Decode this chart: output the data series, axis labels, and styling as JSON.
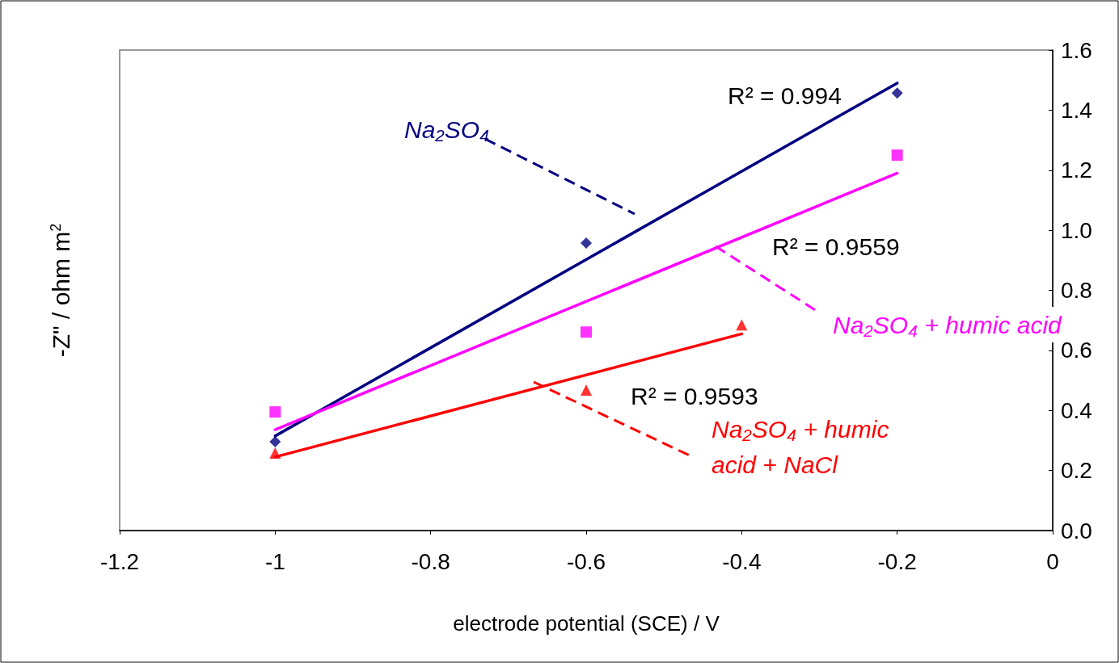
{
  "chart_data": {
    "type": "scatter",
    "xlabel": "electrode potential (SCE) / V",
    "ylabel": "-Z\" / ohm m$^{2}$",
    "xlim": [
      -1.2,
      0
    ],
    "xticks": [
      -1.2,
      -1,
      -0.8,
      -0.6,
      -0.4,
      -0.2,
      0
    ],
    "ylim": [
      0,
      1.6
    ],
    "yticks": [
      {
        "value": 0,
        "label": "0.0"
      },
      0.2,
      0.4,
      0.6,
      0.8,
      {
        "value": 1,
        "label": "1.0"
      },
      1.2,
      1.4,
      1.6
    ],
    "grid": false,
    "legend": false,
    "series": [
      {
        "name": "Na₂SO₄",
        "marker": "diamond",
        "color": "#000080",
        "x": [
          -1,
          -0.6,
          -0.2
        ],
        "values": [
          0.296,
          0.957,
          1.457
        ]
      },
      {
        "name": "Na₂SO₄ + humic acid",
        "marker": "square",
        "color": "#ff00ff",
        "x": [
          -1,
          -0.6,
          -0.2
        ],
        "values": [
          0.395,
          0.661,
          1.25
        ]
      },
      {
        "name": "Na₂SO₄ + humic acid + NaCl",
        "marker": "triangle",
        "color": "#ff0000",
        "x": [
          -1,
          -0.6,
          -0.4
        ],
        "values": [
          0.258,
          0.468,
          0.685
        ]
      },
      {
        "type": "line",
        "marker": "none",
        "color": "#000080",
        "x": [
          -1,
          -0.2
        ],
        "values": [
          0.315,
          1.49
        ]
      },
      {
        "type": "line",
        "marker": "none",
        "color": "#ff00ff",
        "x": [
          -1,
          -0.2
        ],
        "values": [
          0.336,
          1.19
        ]
      },
      {
        "type": "line",
        "marker": "none",
        "color": "#ff0000",
        "x": [
          -1,
          -0.4
        ],
        "values": [
          0.245,
          0.655
        ]
      }
    ],
    "annotations": [
      "R² = 0.994",
      "R² = 0.9559",
      "R² = 0.9593"
    ]
  }
}
